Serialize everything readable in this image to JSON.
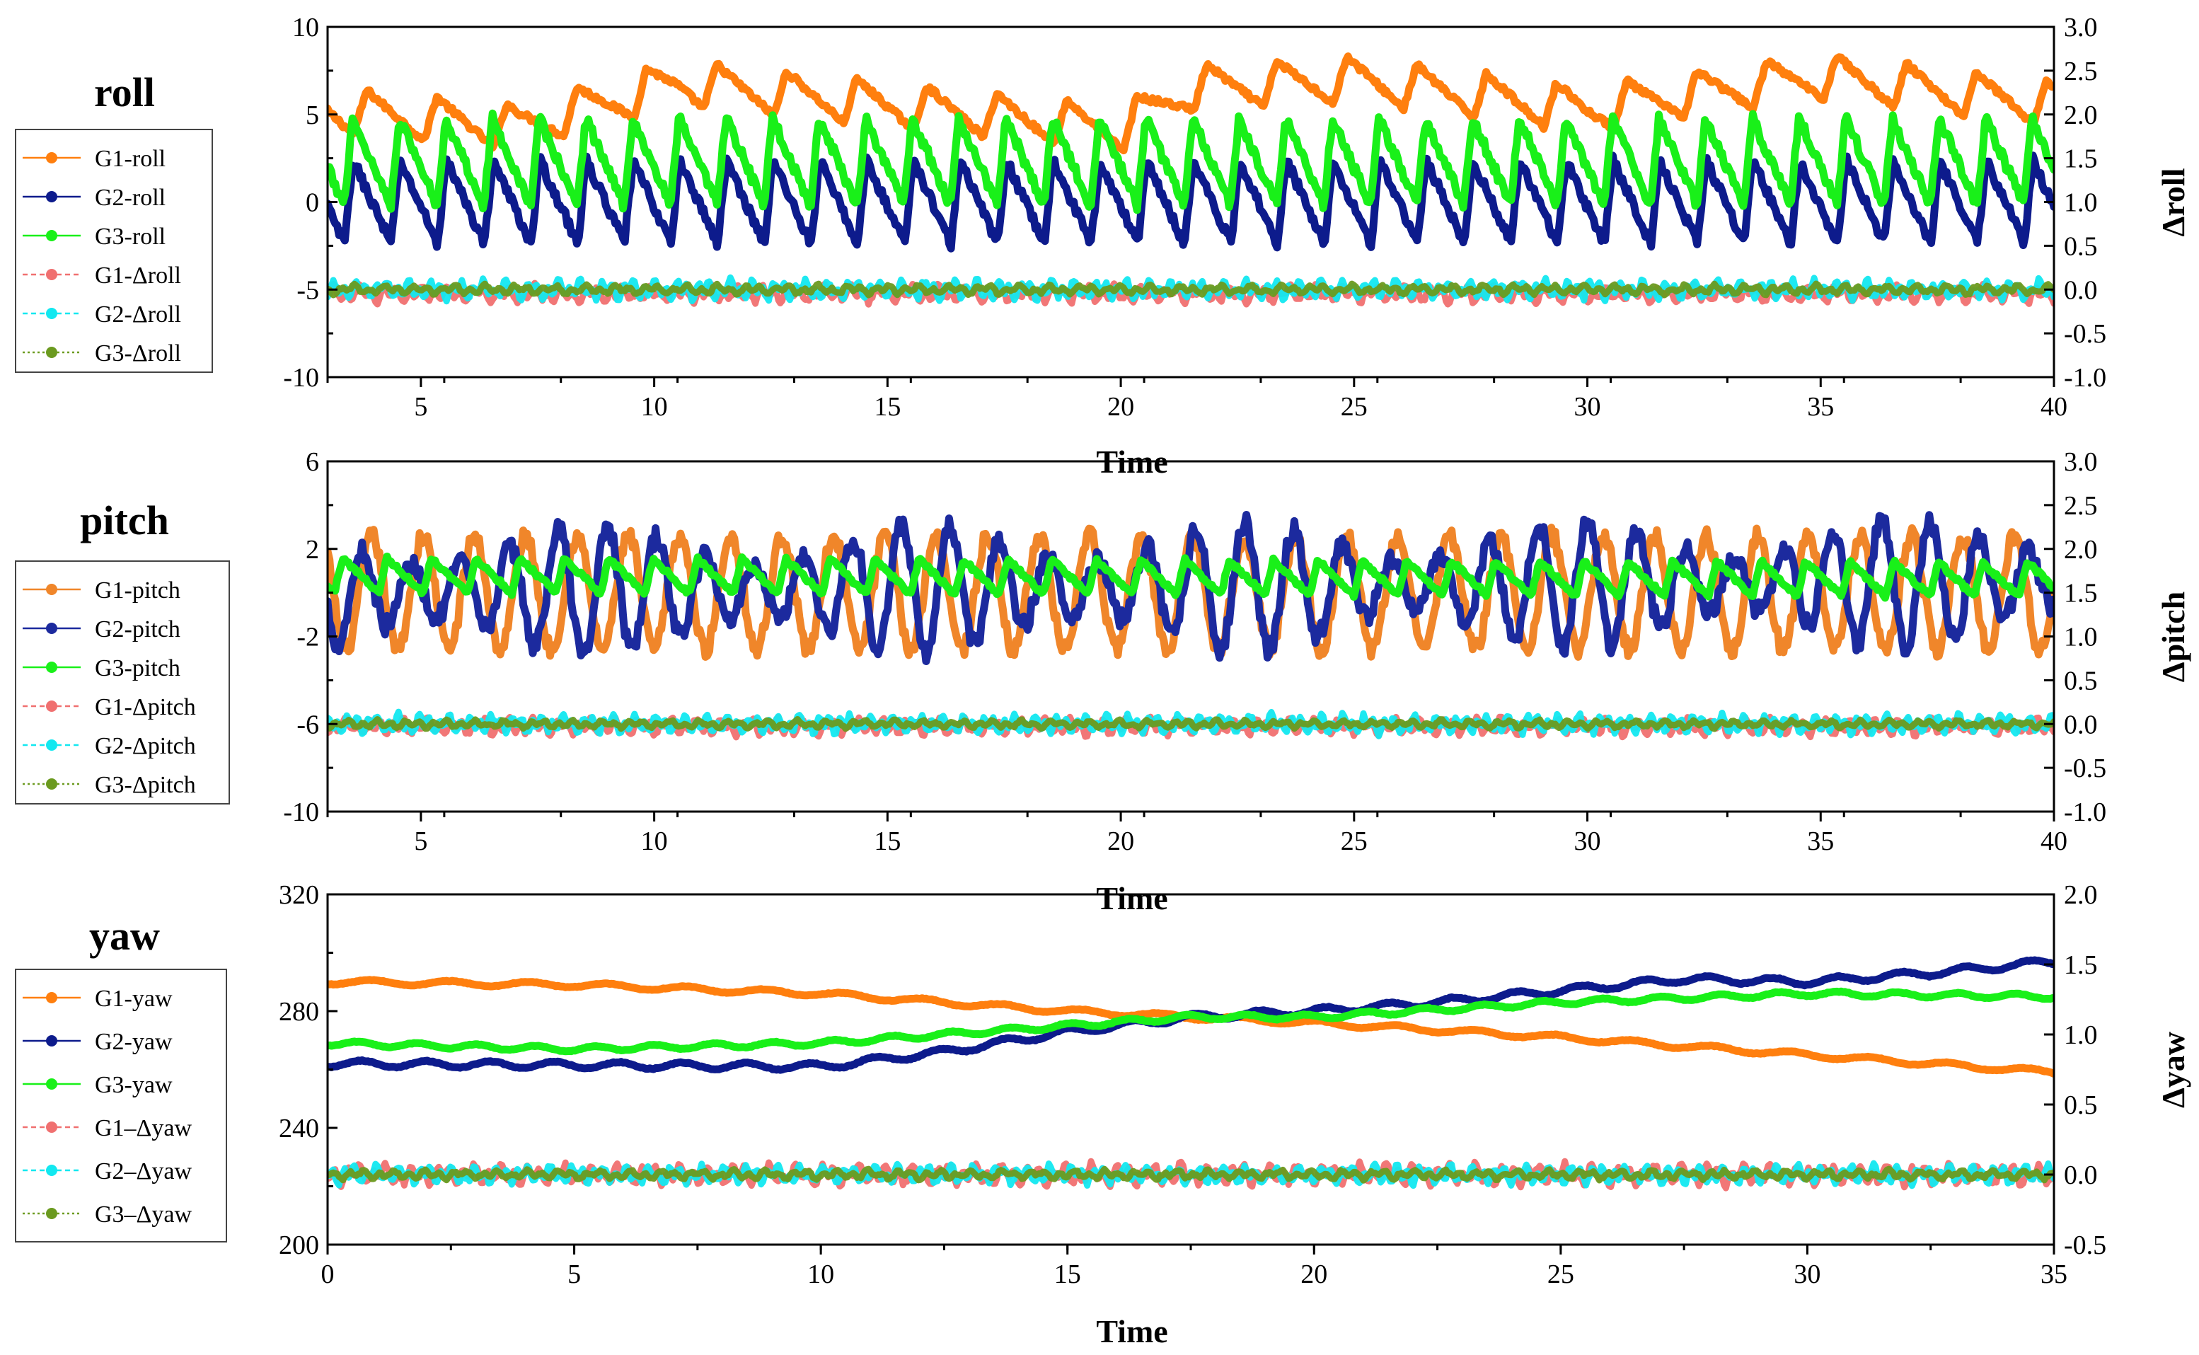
{
  "chart_data": [
    {
      "type": "line",
      "panel": "roll",
      "title": "roll",
      "xlabel": "Time",
      "ylabel_right": "Δroll",
      "xlim": [
        3,
        40
      ],
      "ylim": [
        -10,
        10
      ],
      "ylim_right": [
        -1.0,
        3.0
      ],
      "xticks": [
        "5",
        "10",
        "15",
        "20",
        "25",
        "30",
        "35",
        "40"
      ],
      "yticks": [
        "10",
        "5",
        "0",
        "-5",
        "-10"
      ],
      "yticks_right": [
        "3.0",
        "2.5",
        "2.0",
        "1.5",
        "1.0",
        "0.5",
        "0.0",
        "-0.5",
        "-1.0"
      ],
      "legend": [
        "G1-roll",
        "G2-roll",
        "G3-roll",
        "G1-Δroll",
        "G2-Δroll",
        "G3-Δroll"
      ],
      "series": [
        {
          "name": "G1-roll",
          "axis": "left",
          "color": "#ff7f0e",
          "style": "solid",
          "wave": {
            "start": 5.3,
            "trend": [
              [
                3,
                5.3
              ],
              [
                7,
                4.3
              ],
              [
                10.5,
                6.8
              ],
              [
                20,
                4.2
              ],
              [
                21.5,
                6.5
              ],
              [
                25,
                7.0
              ],
              [
                30,
                5.3
              ],
              [
                35,
                7.2
              ],
              [
                40,
                5.6
              ]
            ],
            "period": 1.5,
            "amp": 1.3,
            "shape": "saw"
          }
        },
        {
          "name": "G2-roll",
          "axis": "left",
          "color": "#0d1b8c",
          "style": "solid",
          "wave": {
            "trend": [
              [
                3,
                0.0
              ],
              [
                40,
                0.0
              ]
            ],
            "period": 1.0,
            "amp": 2.4,
            "shape": "saw"
          }
        },
        {
          "name": "G3-roll",
          "axis": "left",
          "color": "#19f019",
          "style": "solid",
          "wave": {
            "trend": [
              [
                3,
                2.3
              ],
              [
                40,
                2.3
              ]
            ],
            "period": 1.0,
            "amp": 2.5,
            "shape": "saw"
          }
        },
        {
          "name": "G1-Δroll",
          "axis": "right",
          "color": "#f07070",
          "style": "dash",
          "wave": {
            "trend": [
              [
                3,
                -0.05
              ],
              [
                40,
                -0.05
              ]
            ],
            "period": 0.27,
            "amp": 0.09,
            "shape": "noise"
          }
        },
        {
          "name": "G2-Δroll",
          "axis": "right",
          "color": "#12e8f0",
          "style": "dash",
          "wave": {
            "trend": [
              [
                3,
                0.0
              ],
              [
                40,
                0.0
              ]
            ],
            "period": 0.23,
            "amp": 0.1,
            "shape": "noise"
          }
        },
        {
          "name": "G3-Δroll",
          "axis": "right",
          "color": "#6b9a1f",
          "style": "dot",
          "wave": {
            "trend": [
              [
                3,
                0.0
              ],
              [
                40,
                0.0
              ]
            ],
            "period": 0.31,
            "amp": 0.05,
            "shape": "noise"
          }
        }
      ]
    },
    {
      "type": "line",
      "panel": "pitch",
      "title": "pitch",
      "xlabel": "Time",
      "ylabel_right": "Δpitch",
      "xlim": [
        3,
        40
      ],
      "ylim": [
        -10,
        6
      ],
      "ylim_right": [
        -1.0,
        3.0
      ],
      "xticks": [
        "5",
        "10",
        "15",
        "20",
        "25",
        "30",
        "35",
        "40"
      ],
      "yticks": [
        "6",
        "2",
        "-2",
        "-6",
        "-10"
      ],
      "yticks_right": [
        "3.0",
        "2.5",
        "2.0",
        "1.5",
        "1.0",
        "0.5",
        "0.0",
        "-0.5",
        "-1.0"
      ],
      "legend": [
        "G1-pitch",
        "G2-pitch",
        "G3-pitch",
        "G1-Δpitch",
        "G2-Δpitch",
        "G3-Δpitch"
      ],
      "series": [
        {
          "name": "G1-pitch",
          "axis": "left",
          "color": "#f0862a",
          "style": "solid",
          "wave": {
            "trend": [
              [
                3,
                0.0
              ],
              [
                40,
                0.0
              ]
            ],
            "period": 1.1,
            "amp": 2.6,
            "shape": "sin"
          }
        },
        {
          "name": "G2-pitch",
          "axis": "left",
          "color": "#1c2a9e",
          "style": "solid",
          "wave": {
            "trend": [
              [
                3,
                0.0
              ],
              [
                40,
                0.5
              ]
            ],
            "period": 1.05,
            "amp": 3.0,
            "shape": "sin2"
          }
        },
        {
          "name": "G3-pitch",
          "axis": "left",
          "color": "#19f019",
          "style": "solid",
          "wave": {
            "trend": [
              [
                3,
                0.8
              ],
              [
                40,
                0.6
              ]
            ],
            "period": 0.95,
            "amp": 0.8,
            "shape": "saw"
          }
        },
        {
          "name": "G1-Δpitch",
          "axis": "right",
          "color": "#f07070",
          "style": "dash",
          "wave": {
            "trend": [
              [
                3,
                -0.03
              ],
              [
                40,
                -0.03
              ]
            ],
            "period": 0.25,
            "amp": 0.09,
            "shape": "noise"
          }
        },
        {
          "name": "G2-Δpitch",
          "axis": "right",
          "color": "#12e8f0",
          "style": "dash",
          "wave": {
            "trend": [
              [
                3,
                0.0
              ],
              [
                40,
                0.0
              ]
            ],
            "period": 0.22,
            "amp": 0.1,
            "shape": "noise"
          }
        },
        {
          "name": "G3-Δpitch",
          "axis": "right",
          "color": "#6b9a1f",
          "style": "dot",
          "wave": {
            "trend": [
              [
                3,
                0.0
              ],
              [
                40,
                0.0
              ]
            ],
            "period": 0.3,
            "amp": 0.04,
            "shape": "noise"
          }
        }
      ]
    },
    {
      "type": "line",
      "panel": "yaw",
      "title": "yaw",
      "xlabel": "Time",
      "ylabel_right": "Δyaw",
      "xlim": [
        0,
        35
      ],
      "ylim": [
        200,
        320
      ],
      "ylim_right": [
        -0.5,
        2.0
      ],
      "xticks": [
        "0",
        "5",
        "10",
        "15",
        "20",
        "25",
        "30",
        "35"
      ],
      "yticks": [
        "320",
        "280",
        "240",
        "200"
      ],
      "yticks_right": [
        "2.0",
        "1.5",
        "1.0",
        "0.5",
        "0.0",
        "-0.5"
      ],
      "legend": [
        "G1-yaw",
        "G2-yaw",
        "G3-yaw",
        "G1–Δyaw",
        "G2–Δyaw",
        "G3–Δyaw"
      ],
      "series": [
        {
          "name": "G1-yaw",
          "axis": "left",
          "color": "#ff7f0e",
          "style": "solid",
          "wave": {
            "trend": [
              [
                0,
                290
              ],
              [
                5,
                289
              ],
              [
                10,
                286
              ],
              [
                15,
                280
              ],
              [
                20,
                276
              ],
              [
                25,
                271
              ],
              [
                30,
                265
              ],
              [
                35,
                259
              ]
            ],
            "period": 1.6,
            "amp": 0.8,
            "shape": "sin"
          }
        },
        {
          "name": "G2-yaw",
          "axis": "left",
          "color": "#0d1b8c",
          "style": "solid",
          "wave": {
            "trend": [
              [
                0,
                262
              ],
              [
                10,
                261
              ],
              [
                12.5,
                266
              ],
              [
                15,
                273
              ],
              [
                17.5,
                278
              ],
              [
                20,
                280
              ],
              [
                22.5,
                283
              ],
              [
                25,
                287
              ],
              [
                27.5,
                291
              ],
              [
                30,
                290
              ],
              [
                32.5,
                293
              ],
              [
                35,
                297
              ]
            ],
            "period": 1.3,
            "amp": 1.1,
            "shape": "sin"
          }
        },
        {
          "name": "G3-yaw",
          "axis": "left",
          "color": "#19f019",
          "style": "solid",
          "wave": {
            "trend": [
              [
                0,
                269
              ],
              [
                5,
                267
              ],
              [
                10,
                269
              ],
              [
                15,
                275
              ],
              [
                17.5,
                278
              ],
              [
                20,
                278
              ],
              [
                25,
                283
              ],
              [
                30,
                286
              ],
              [
                35,
                285
              ]
            ],
            "period": 1.2,
            "amp": 0.8,
            "shape": "sin"
          }
        },
        {
          "name": "G1–Δyaw",
          "axis": "right",
          "color": "#f07070",
          "style": "dash",
          "wave": {
            "trend": [
              [
                0,
                0.0
              ],
              [
                35,
                0.0
              ]
            ],
            "period": 0.26,
            "amp": 0.07,
            "shape": "noise"
          }
        },
        {
          "name": "G2–Δyaw",
          "axis": "right",
          "color": "#12e8f0",
          "style": "dash",
          "wave": {
            "trend": [
              [
                0,
                0.0
              ],
              [
                35,
                0.0
              ]
            ],
            "period": 0.22,
            "amp": 0.06,
            "shape": "noise"
          }
        },
        {
          "name": "G3–Δyaw",
          "axis": "right",
          "color": "#6b9a1f",
          "style": "dot",
          "wave": {
            "trend": [
              [
                0,
                0.0
              ],
              [
                35,
                0.0
              ]
            ],
            "period": 0.3,
            "amp": 0.03,
            "shape": "noise"
          }
        }
      ]
    }
  ]
}
